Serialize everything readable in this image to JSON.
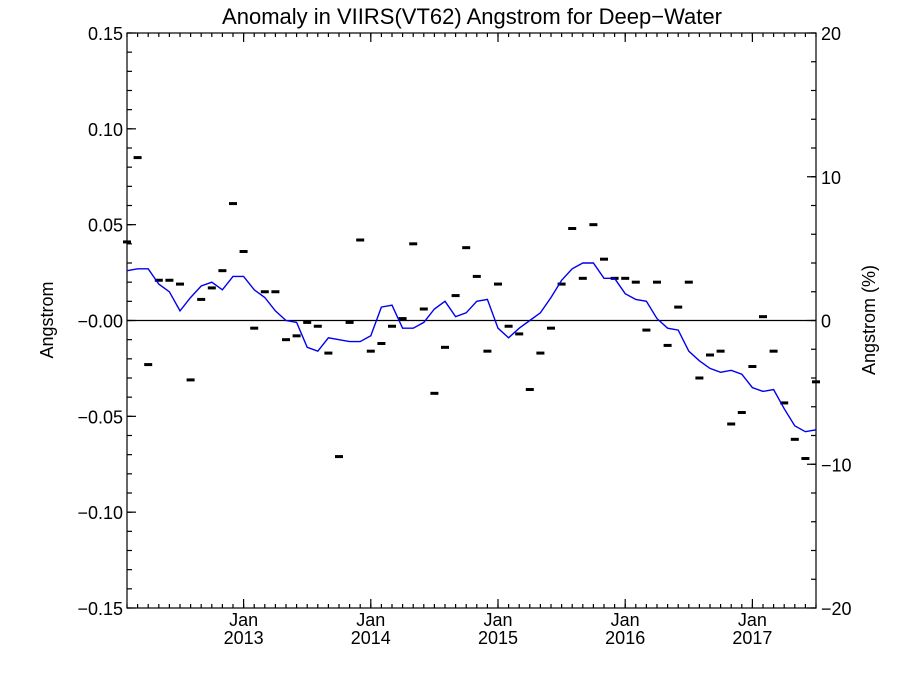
{
  "chart_data": {
    "type": "scatter",
    "title": "Anomaly in VIIRS(VT62) Angstrom for Deep−Water",
    "ylabel": "Angstrom",
    "y2label": "Angstrom (%)",
    "ylim": [
      -0.15,
      0.15
    ],
    "y2lim": [
      -20,
      20
    ],
    "y_ticks": [
      {
        "v": 0.15,
        "label": "0.15"
      },
      {
        "v": 0.1,
        "label": "0.10"
      },
      {
        "v": 0.05,
        "label": "0.05"
      },
      {
        "v": 0.0,
        "label": "−0.00"
      },
      {
        "v": -0.05,
        "label": "−0.05"
      },
      {
        "v": -0.1,
        "label": "−0.10"
      },
      {
        "v": -0.15,
        "label": "−0.15"
      }
    ],
    "y2_ticks": [
      {
        "v": 20,
        "label": "20"
      },
      {
        "v": 10,
        "label": "10"
      },
      {
        "v": 0,
        "label": "0"
      },
      {
        "v": -10,
        "label": "−10"
      },
      {
        "v": -20,
        "label": "−20"
      }
    ],
    "x_start": "2012-02",
    "x_end": "2017-07",
    "x_ticks": [
      {
        "date": "2013-01",
        "month": "Jan",
        "year": "2013"
      },
      {
        "date": "2014-01",
        "month": "Jan",
        "year": "2014"
      },
      {
        "date": "2015-01",
        "month": "Jan",
        "year": "2015"
      },
      {
        "date": "2016-01",
        "month": "Jan",
        "year": "2016"
      },
      {
        "date": "2017-01",
        "month": "Jan",
        "year": "2017"
      }
    ],
    "reference_line": 0,
    "series": [
      {
        "style": "markers",
        "color": "#000000",
        "x": [
          "2012-02",
          "2012-03",
          "2012-04",
          "2012-05",
          "2012-06",
          "2012-07",
          "2012-08",
          "2012-09",
          "2012-10",
          "2012-11",
          "2012-12",
          "2013-01",
          "2013-02",
          "2013-03",
          "2013-04",
          "2013-05",
          "2013-06",
          "2013-07",
          "2013-08",
          "2013-09",
          "2013-10",
          "2013-11",
          "2013-12",
          "2014-01",
          "2014-02",
          "2014-03",
          "2014-04",
          "2014-05",
          "2014-06",
          "2014-07",
          "2014-08",
          "2014-09",
          "2014-10",
          "2014-11",
          "2014-12",
          "2015-01",
          "2015-02",
          "2015-03",
          "2015-04",
          "2015-05",
          "2015-06",
          "2015-07",
          "2015-08",
          "2015-09",
          "2015-10",
          "2015-11",
          "2015-12",
          "2016-01",
          "2016-02",
          "2016-03",
          "2016-04",
          "2016-05",
          "2016-06",
          "2016-07",
          "2016-08",
          "2016-09",
          "2016-10",
          "2016-11",
          "2016-12",
          "2017-01",
          "2017-02",
          "2017-03",
          "2017-04",
          "2017-05",
          "2017-06",
          "2017-07"
        ],
        "values": [
          0.041,
          0.085,
          -0.023,
          0.021,
          0.021,
          0.019,
          -0.031,
          0.011,
          0.017,
          0.026,
          0.061,
          0.036,
          -0.004,
          0.015,
          0.015,
          -0.01,
          -0.008,
          -0.001,
          -0.003,
          -0.017,
          -0.071,
          -0.001,
          0.042,
          -0.016,
          -0.012,
          -0.003,
          0.001,
          0.04,
          0.006,
          -0.038,
          -0.014,
          0.013,
          0.038,
          0.023,
          -0.016,
          0.019,
          -0.003,
          -0.007,
          -0.036,
          -0.017,
          -0.004,
          0.019,
          0.048,
          0.022,
          0.05,
          0.032,
          0.022,
          0.022,
          0.02,
          -0.005,
          0.02,
          -0.013,
          0.007,
          0.02,
          -0.03,
          -0.018,
          -0.016,
          -0.054,
          -0.048,
          -0.024,
          0.002,
          -0.016,
          -0.043,
          -0.062,
          -0.072,
          -0.032
        ]
      },
      {
        "style": "line",
        "color": "#0000ee",
        "x": [
          "2012-02",
          "2012-03",
          "2012-04",
          "2012-05",
          "2012-06",
          "2012-07",
          "2012-08",
          "2012-09",
          "2012-10",
          "2012-11",
          "2012-12",
          "2013-01",
          "2013-02",
          "2013-03",
          "2013-04",
          "2013-05",
          "2013-06",
          "2013-07",
          "2013-08",
          "2013-09",
          "2013-10",
          "2013-11",
          "2013-12",
          "2014-01",
          "2014-02",
          "2014-03",
          "2014-04",
          "2014-05",
          "2014-06",
          "2014-07",
          "2014-08",
          "2014-09",
          "2014-10",
          "2014-11",
          "2014-12",
          "2015-01",
          "2015-02",
          "2015-03",
          "2015-04",
          "2015-05",
          "2015-06",
          "2015-07",
          "2015-08",
          "2015-09",
          "2015-10",
          "2015-11",
          "2015-12",
          "2016-01",
          "2016-02",
          "2016-03",
          "2016-04",
          "2016-05",
          "2016-06",
          "2016-07",
          "2016-08",
          "2016-09",
          "2016-10",
          "2016-11",
          "2016-12",
          "2017-01",
          "2017-02",
          "2017-03",
          "2017-04",
          "2017-05",
          "2017-06",
          "2017-07"
        ],
        "values": [
          0.026,
          0.027,
          0.027,
          0.019,
          0.015,
          0.005,
          0.012,
          0.018,
          0.02,
          0.016,
          0.023,
          0.023,
          0.016,
          0.012,
          0.005,
          0.0,
          -0.001,
          -0.014,
          -0.016,
          -0.009,
          -0.01,
          -0.011,
          -0.011,
          -0.008,
          0.007,
          0.008,
          -0.004,
          -0.004,
          -0.001,
          0.006,
          0.01,
          0.002,
          0.004,
          0.01,
          0.011,
          -0.004,
          -0.009,
          -0.004,
          0.0,
          0.004,
          0.012,
          0.021,
          0.027,
          0.03,
          0.03,
          0.022,
          0.022,
          0.014,
          0.011,
          0.01,
          0.001,
          -0.004,
          -0.005,
          -0.016,
          -0.021,
          -0.025,
          -0.027,
          -0.026,
          -0.028,
          -0.035,
          -0.037,
          -0.036,
          -0.046,
          -0.055,
          -0.058,
          -0.057
        ]
      }
    ],
    "grid": false,
    "legend": "none"
  }
}
